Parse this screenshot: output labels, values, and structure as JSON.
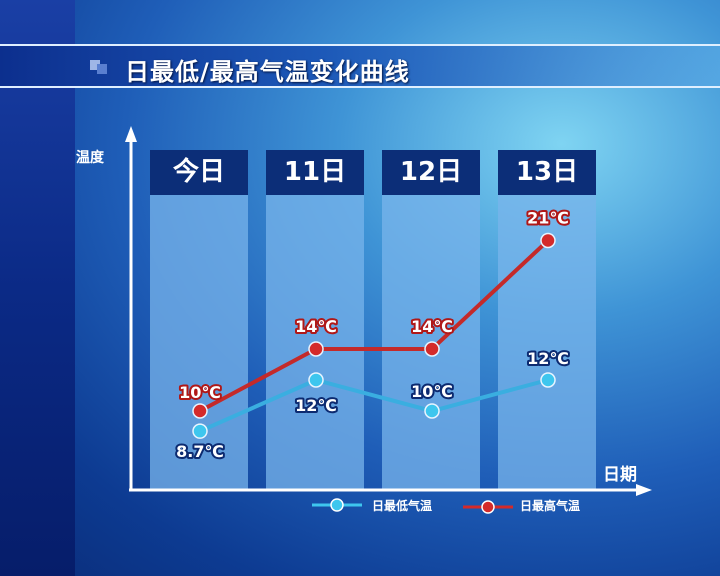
{
  "title": "日最低/最高气温变化曲线",
  "chart_data": {
    "type": "line",
    "title": "日最低/最高气温变化曲线",
    "xlabel": "日期",
    "ylabel": "温度",
    "categories": [
      "今日",
      "11日",
      "12日",
      "13日"
    ],
    "unit": "℃",
    "series": [
      {
        "name": "日最低气温",
        "values": [
          8.7,
          12,
          10,
          12
        ],
        "labels": [
          "8.7℃",
          "12℃",
          "10℃",
          "12℃"
        ],
        "color": "#3ec6ee"
      },
      {
        "name": "日最高气温",
        "values": [
          10,
          14,
          14,
          21
        ],
        "labels": [
          "10℃",
          "14℃",
          "14℃",
          "21℃"
        ],
        "color": "#d42a2a"
      }
    ],
    "grid": false,
    "legend": "bottom"
  }
}
